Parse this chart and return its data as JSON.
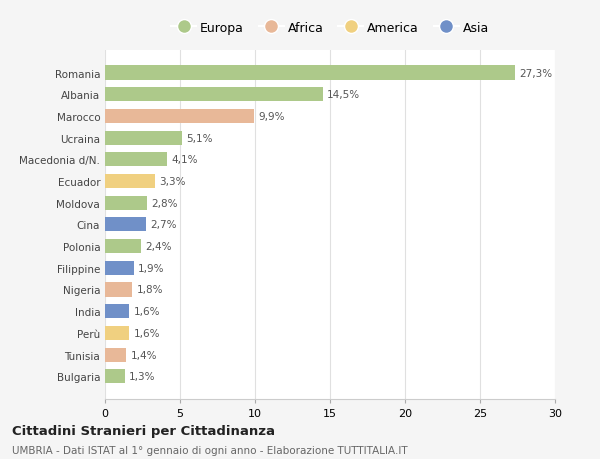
{
  "countries": [
    "Romania",
    "Albania",
    "Marocco",
    "Ucraina",
    "Macedonia d/N.",
    "Ecuador",
    "Moldova",
    "Cina",
    "Polonia",
    "Filippine",
    "Nigeria",
    "India",
    "Perù",
    "Tunisia",
    "Bulgaria"
  ],
  "values": [
    27.3,
    14.5,
    9.9,
    5.1,
    4.1,
    3.3,
    2.8,
    2.7,
    2.4,
    1.9,
    1.8,
    1.6,
    1.6,
    1.4,
    1.3
  ],
  "labels": [
    "27,3%",
    "14,5%",
    "9,9%",
    "5,1%",
    "4,1%",
    "3,3%",
    "2,8%",
    "2,7%",
    "2,4%",
    "1,9%",
    "1,8%",
    "1,6%",
    "1,6%",
    "1,4%",
    "1,3%"
  ],
  "continents": [
    "Europa",
    "Europa",
    "Africa",
    "Europa",
    "Europa",
    "America",
    "Europa",
    "Asia",
    "Europa",
    "Asia",
    "Africa",
    "Asia",
    "America",
    "Africa",
    "Europa"
  ],
  "colors": {
    "Europa": "#adc98a",
    "Africa": "#e8b898",
    "America": "#f0d080",
    "Asia": "#7090c8"
  },
  "title": "Cittadini Stranieri per Cittadinanza",
  "subtitle": "UMBRIA - Dati ISTAT al 1° gennaio di ogni anno - Elaborazione TUTTITALIA.IT",
  "xlim": [
    0,
    30
  ],
  "xticks": [
    0,
    5,
    10,
    15,
    20,
    25,
    30
  ],
  "background_color": "#f5f5f5",
  "plot_bg_color": "#ffffff",
  "grid_color": "#e0e0e0"
}
